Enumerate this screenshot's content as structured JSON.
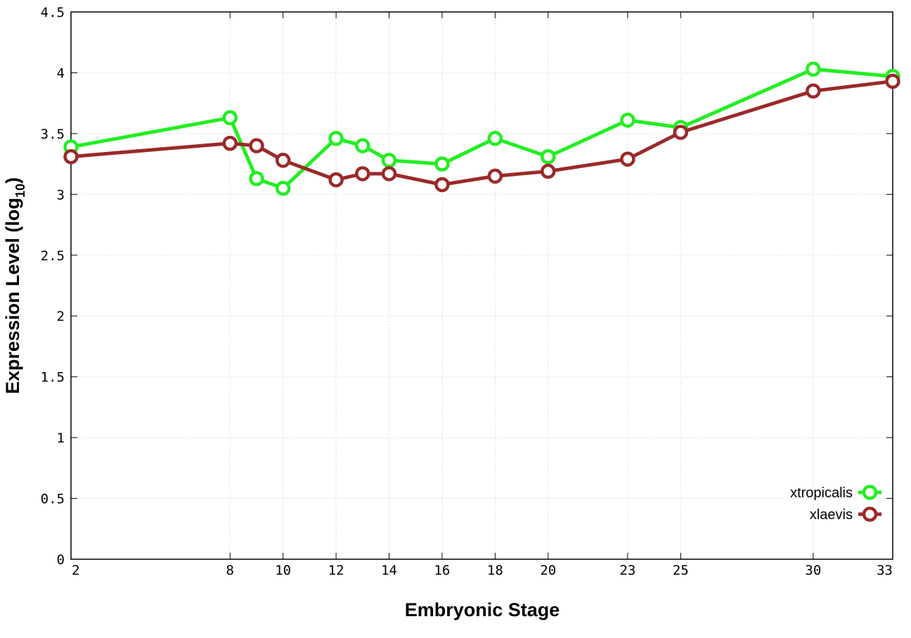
{
  "chart_data": {
    "type": "line",
    "xlabel": "Embryonic Stage",
    "ylabel_main": "Expression Level (log",
    "ylabel_sub": "10",
    "ylabel_end": ")",
    "ylim": [
      0,
      4.5
    ],
    "yticks": [
      0,
      0.5,
      1,
      1.5,
      2,
      2.5,
      3,
      3.5,
      4,
      4.5
    ],
    "ytick_labels": [
      "0",
      "0.5",
      "1",
      "1.5",
      "2",
      "2.5",
      "3",
      "3.5",
      "4",
      "4.5"
    ],
    "x": [
      2,
      8,
      9,
      10,
      12,
      13,
      14,
      16,
      18,
      20,
      23,
      25,
      30,
      33
    ],
    "xlim": [
      2,
      33
    ],
    "xticks": [
      2,
      8,
      10,
      12,
      14,
      16,
      18,
      20,
      23,
      25,
      30,
      33
    ],
    "xtick_labels": [
      "2",
      "8",
      "10",
      "12",
      "14",
      "16",
      "18",
      "20",
      "23",
      "25",
      "30",
      "33"
    ],
    "grid": true,
    "legend_position": "bottom-right",
    "series": [
      {
        "name": "xtropicalis",
        "color": "#22ee22",
        "values": [
          3.39,
          3.63,
          3.13,
          3.05,
          3.46,
          3.4,
          3.28,
          3.25,
          3.46,
          3.31,
          3.61,
          3.55,
          4.03,
          3.97
        ]
      },
      {
        "name": "xlaevis",
        "color": "#9a2a2a",
        "values": [
          3.31,
          3.42,
          3.4,
          3.28,
          3.12,
          3.17,
          3.17,
          3.08,
          3.15,
          3.19,
          3.29,
          3.51,
          3.85,
          3.93
        ]
      }
    ]
  }
}
